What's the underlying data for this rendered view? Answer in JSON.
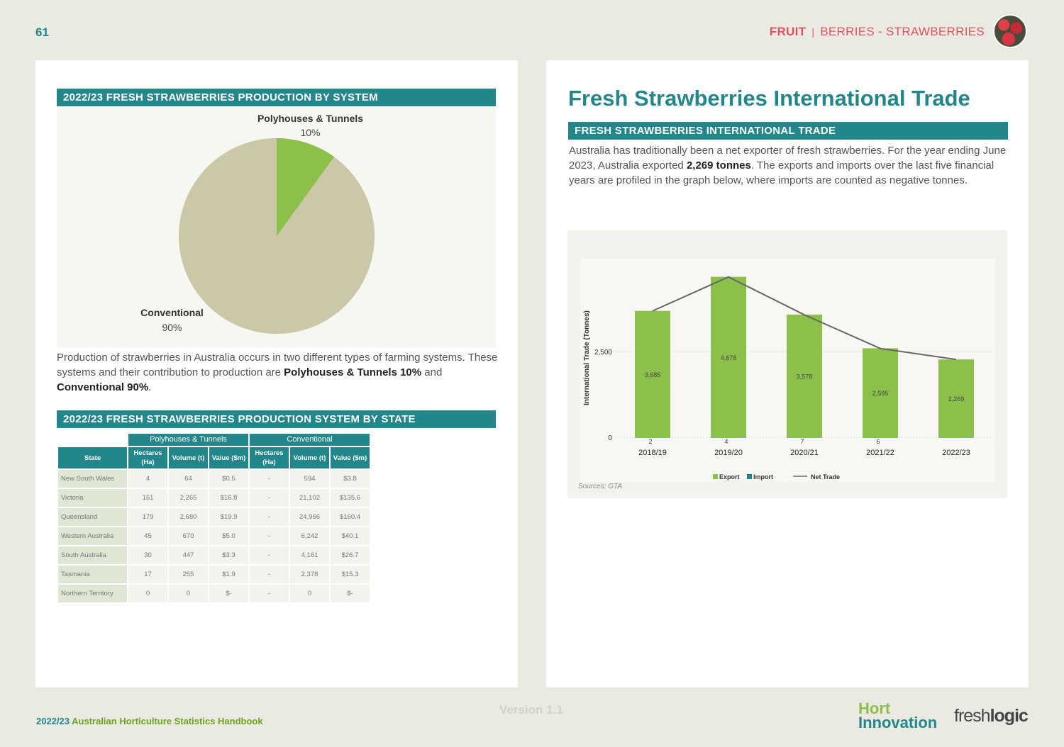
{
  "header": {
    "page_number": "61",
    "category": "FRUIT",
    "separator": "|",
    "subcategory": "BERRIES - STRAWBERRIES"
  },
  "left": {
    "pie_title": "2022/23 FRESH STRAWBERRIES PRODUCTION BY SYSTEM",
    "pie": {
      "type": "pie",
      "slices": [
        {
          "label": "Polyhouses & Tunnels",
          "value": 10,
          "value_label": "10%",
          "color": "#8dc04a"
        },
        {
          "label": "Conventional",
          "value": 90,
          "value_label": "90%",
          "color": "#cbc7a8"
        }
      ]
    },
    "para_1": "Production of strawberries in Australia occurs in two different types of farming systems. These systems and their contribution to production are ",
    "para_b1": "Polyhouses & Tunnels 10%",
    "para_2": " and ",
    "para_b2": "Conventional 90%",
    "para_3": ".",
    "table_title": "2022/23 FRESH STRAWBERRIES PRODUCTION SYSTEM BY STATE",
    "table": {
      "groups": [
        "Polyhouses & Tunnels",
        "Conventional"
      ],
      "state_header": "State",
      "columns": [
        "Hectares (Ha)",
        "Volume (t)",
        "Value ($m)",
        "Hectares (Ha)",
        "Volume (t)",
        "Value ($m)"
      ],
      "rows": [
        [
          "New South Wales",
          "4",
          "64",
          "$0.5",
          "-",
          "594",
          "$3.8"
        ],
        [
          "Victoria",
          "151",
          "2,265",
          "$16.8",
          "-",
          "21,102",
          "$135.6"
        ],
        [
          "Queensland",
          "179",
          "2,680",
          "$19.9",
          "-",
          "24,966",
          "$160.4"
        ],
        [
          "Western Australia",
          "45",
          "670",
          "$5.0",
          "-",
          "6,242",
          "$40.1"
        ],
        [
          "South Australia",
          "30",
          "447",
          "$3.3",
          "-",
          "4,161",
          "$26.7"
        ],
        [
          "Tasmania",
          "17",
          "255",
          "$1.9",
          "-",
          "2,378",
          "$15.3"
        ],
        [
          "Northern Territory",
          "0",
          "0",
          "$-",
          "-",
          "0",
          "$-"
        ]
      ]
    }
  },
  "right": {
    "title": "Fresh Strawberries International Trade",
    "section_title": "FRESH STRAWBERRIES INTERNATIONAL TRADE",
    "para_1": "Australia has traditionally been a net exporter of fresh strawberries. For the year ending June 2023, Australia exported ",
    "para_b": "2,269 tonnes",
    "para_2": ". The exports and imports over the last five financial years are profiled in the graph below, where imports are counted as negative tonnes.",
    "source": "Sources: GTA"
  },
  "chart_data": {
    "type": "bar",
    "categories": [
      "2018/19",
      "2019/20",
      "2020/21",
      "2021/22",
      "2022/23"
    ],
    "series": [
      {
        "name": "Export",
        "values": [
          3685,
          4678,
          3578,
          2595,
          2269
        ],
        "labels": [
          "3,685",
          "4,678",
          "3,578",
          "2,595",
          "2,269"
        ],
        "color": "#8dc04a"
      },
      {
        "name": "Import",
        "values": [
          -2,
          -4,
          -7,
          -6,
          0
        ],
        "labels": [
          "2",
          "4",
          "7",
          "6",
          ""
        ],
        "color": "#22868a"
      },
      {
        "name": "Net Trade",
        "type": "line",
        "values": [
          3683,
          4674,
          3571,
          2589,
          2269
        ],
        "color": "#666666"
      }
    ],
    "ylabel": "International Trade (Tonnes)",
    "yticks": [
      {
        "v": 0,
        "label": "0"
      },
      {
        "v": 2500,
        "label": "2,500"
      }
    ],
    "ylim": [
      0,
      5000
    ],
    "grid": true,
    "legend": "bottom"
  },
  "footer": {
    "year": "2022/23",
    "handbook": "Australian Horticulture Statistics Handbook",
    "version": "Version 1.1",
    "logo_hort_1": "Hort",
    "logo_hort_2": "Innovation",
    "logo_fl_1": "fresh",
    "logo_fl_2": "logic"
  }
}
